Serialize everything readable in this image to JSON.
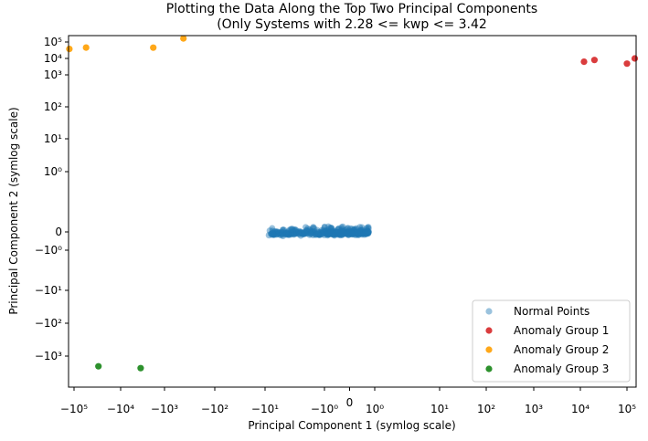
{
  "chart_data": {
    "type": "scatter",
    "title": "Plotting the Data Along the Top Two Principal Components",
    "subtitle": "(Only Systems with 2.28 <= kwp <= 3.42",
    "xlabel": "Principal Component 1 (symlog scale)",
    "ylabel": "Principal Component 2 (symlog scale)",
    "xscale": "symlog",
    "yscale": "symlog",
    "xlim": [
      -130000,
      130000
    ],
    "ylim": [
      -6000,
      160000
    ],
    "grid": false,
    "legend_position": "bottom-right",
    "x_ticks": [
      {
        "value": -100000,
        "label": "−10⁵"
      },
      {
        "value": -10000,
        "label": "−10⁴"
      },
      {
        "value": -1000,
        "label": "−10³"
      },
      {
        "value": -100,
        "label": "−10²"
      },
      {
        "value": -10,
        "label": "−10¹"
      },
      {
        "value": -1,
        "label": "−10⁰"
      },
      {
        "value": 0,
        "label": "0"
      },
      {
        "value": 1,
        "label": "10⁰"
      },
      {
        "value": 10,
        "label": "10¹"
      },
      {
        "value": 100,
        "label": "10²"
      },
      {
        "value": 1000,
        "label": "10³"
      },
      {
        "value": 10000,
        "label": "10⁴"
      },
      {
        "value": 100000,
        "label": "10⁵"
      }
    ],
    "y_ticks": [
      {
        "value": 100000,
        "label": "10⁵"
      },
      {
        "value": 10000,
        "label": "10⁴"
      },
      {
        "value": 1000,
        "label": "10³"
      },
      {
        "value": 100,
        "label": "10²"
      },
      {
        "value": 10,
        "label": "10¹"
      },
      {
        "value": 1,
        "label": "10⁰"
      },
      {
        "value": 0,
        "label": "0"
      },
      {
        "value": -1,
        "label": "−10⁰"
      },
      {
        "value": -10,
        "label": "−10¹"
      },
      {
        "value": -100,
        "label": "−10²"
      },
      {
        "value": -1000,
        "label": "−10³"
      }
    ],
    "series": [
      {
        "name": "Normal Points",
        "color": "#1f77b4",
        "opacity": 0.45,
        "cluster": {
          "x_range": [
            -8,
            0.8
          ],
          "y_range": [
            -0.2,
            0.1
          ],
          "count": 450
        },
        "points": [
          {
            "x": -8.6,
            "y": -0.18
          },
          {
            "x": -8.3,
            "y": 0.02
          },
          {
            "x": -7.5,
            "y": -0.12
          },
          {
            "x": -5.0,
            "y": -0.22
          },
          {
            "x": -3.5,
            "y": 0.05
          },
          {
            "x": -2.5,
            "y": -0.2
          },
          {
            "x": -1.5,
            "y": 0.06
          },
          {
            "x": -0.6,
            "y": -0.19
          },
          {
            "x": -0.3,
            "y": 0.05
          },
          {
            "x": 0.3,
            "y": -0.04
          },
          {
            "x": 0.65,
            "y": -0.02
          }
        ]
      },
      {
        "name": "Anomaly Group 1",
        "color": "#d62728",
        "opacity": 0.9,
        "points": [
          {
            "x": 12000,
            "y": 6300
          },
          {
            "x": 20000,
            "y": 8000
          },
          {
            "x": 100000,
            "y": 4800
          },
          {
            "x": 125000,
            "y": 10000
          }
        ]
      },
      {
        "name": "Anomaly Group 2",
        "color": "#ff9f00",
        "opacity": 0.9,
        "points": [
          {
            "x": -125000,
            "y": 38000
          },
          {
            "x": -55000,
            "y": 46000
          },
          {
            "x": -1800,
            "y": 45000
          },
          {
            "x": -420,
            "y": 130000
          }
        ]
      },
      {
        "name": "Anomaly Group 3",
        "color": "#228b22",
        "opacity": 0.95,
        "points": [
          {
            "x": -30000,
            "y": -1800
          },
          {
            "x": -3500,
            "y": -2000
          }
        ]
      }
    ]
  }
}
